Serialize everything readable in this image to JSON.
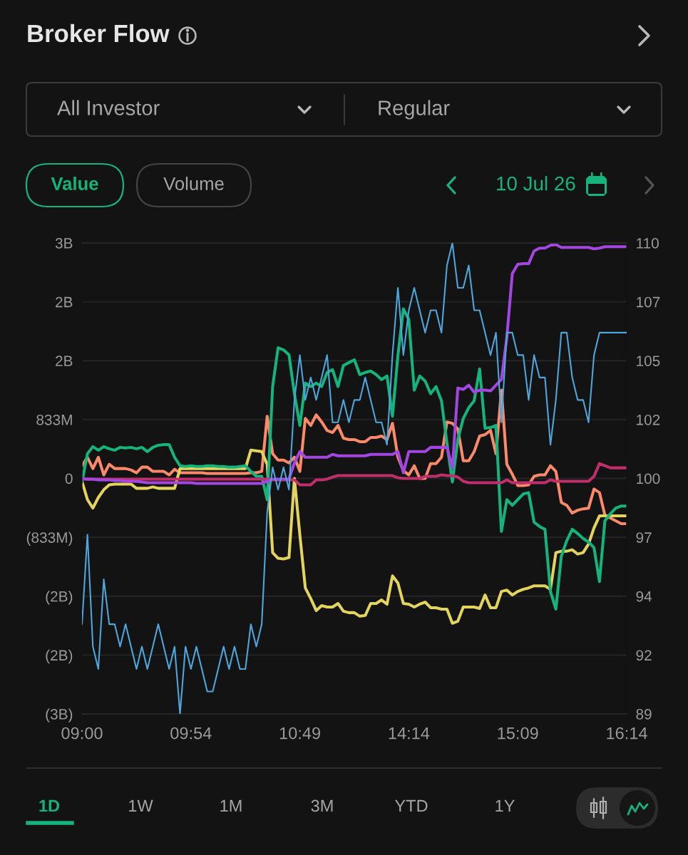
{
  "chart_data": {
    "type": "line",
    "title": "Broker Flow",
    "annotations": [
      "All Investor",
      "Regular",
      "Value",
      "Volume",
      "10 Jul 26",
      "1D",
      "1W",
      "1M",
      "3M",
      "YTD",
      "1Y"
    ],
    "categories": [
      "09:00",
      null,
      null,
      null,
      null,
      null,
      null,
      null,
      null,
      null,
      null,
      null,
      null,
      null,
      null,
      null,
      null,
      null,
      null,
      null,
      "09:54",
      null,
      null,
      null,
      null,
      null,
      null,
      null,
      null,
      null,
      null,
      null,
      null,
      null,
      null,
      null,
      null,
      null,
      null,
      null,
      "10:49",
      null,
      null,
      null,
      null,
      null,
      null,
      null,
      null,
      null,
      null,
      null,
      null,
      null,
      null,
      null,
      null,
      null,
      null,
      null,
      "14:14",
      null,
      null,
      null,
      null,
      null,
      null,
      null,
      null,
      null,
      null,
      null,
      null,
      null,
      null,
      null,
      null,
      null,
      null,
      null,
      "15:09",
      null,
      null,
      null,
      null,
      null,
      null,
      null,
      null,
      null,
      null,
      null,
      null,
      null,
      null,
      null,
      null,
      null,
      null,
      null,
      "16:14"
    ],
    "series": [
      {
        "color": "#fb8a6a",
        "values": [
          180000000.0,
          300000000.0,
          140000000.0,
          300000000.0,
          50000000.0,
          200000000.0,
          140000000.0,
          140000000.0,
          140000000.0,
          120000000.0,
          80000000.0,
          160000000.0,
          160000000.0,
          100000000.0,
          100000000.0,
          100000000.0,
          50000000.0,
          130000000.0,
          80000000.0,
          80000000.0,
          80000000.0,
          80000000.0,
          80000000.0,
          70000000.0,
          70000000.0,
          70000000.0,
          70000000.0,
          70000000.0,
          70000000.0,
          70000000.0,
          70000000.0,
          80000000.0,
          80000000.0,
          100000000.0,
          880000000.0,
          350000000.0,
          260000000.0,
          260000000.0,
          220000000.0,
          300000000.0,
          100000000.0,
          850000000.0,
          750000000.0,
          900000000.0,
          800000000.0,
          680000000.0,
          650000000.0,
          750000000.0,
          570000000.0,
          550000000.0,
          550000000.0,
          520000000.0,
          520000000.0,
          580000000.0,
          580000000.0,
          600000000.0,
          550000000.0,
          780000000.0,
          300000000.0,
          110000000.0,
          50000000.0,
          180000000.0,
          0,
          0,
          210000000.0,
          210000000.0,
          300000000.0,
          800000000.0,
          780000000.0,
          700000000.0,
          250000000.0,
          250000000.0,
          380000000.0,
          600000000.0,
          620000000.0,
          680000000.0,
          350000000.0,
          1250000000.0,
          200000000.0,
          60000000.0,
          -100000000.0,
          -100000000.0,
          -90000000.0,
          30000000.0,
          50000000.0,
          50000000.0,
          180000000.0,
          100000000.0,
          -340000000.0,
          -380000000.0,
          -490000000.0,
          -450000000.0,
          -430000000.0,
          -420000000.0,
          -150000000.0,
          -200000000.0,
          -520000000.0,
          -560000000.0,
          -600000000.0,
          -640000000.0,
          -640000000.0
        ]
      },
      {
        "color": "#e2d45c",
        "values": [
          -40000000.0,
          -300000000.0,
          -420000000.0,
          -270000000.0,
          -160000000.0,
          -90000000.0,
          -80000000.0,
          -80000000.0,
          -80000000.0,
          -80000000.0,
          -140000000.0,
          -140000000.0,
          -140000000.0,
          -120000000.0,
          -140000000.0,
          -140000000.0,
          -140000000.0,
          -140000000.0,
          140000000.0,
          140000000.0,
          140000000.0,
          140000000.0,
          140000000.0,
          140000000.0,
          140000000.0,
          140000000.0,
          140000000.0,
          140000000.0,
          140000000.0,
          140000000.0,
          140000000.0,
          400000000.0,
          390000000.0,
          380000000.0,
          200000000.0,
          -1050000000.0,
          -1130000000.0,
          -1140000000.0,
          -1120000000.0,
          0,
          -800000000.0,
          -1550000000.0,
          -1700000000.0,
          -1870000000.0,
          -1800000000.0,
          -1820000000.0,
          -1820000000.0,
          -1770000000.0,
          -1880000000.0,
          -1900000000.0,
          -1900000000.0,
          -1950000000.0,
          -1940000000.0,
          -1770000000.0,
          -1770000000.0,
          -1720000000.0,
          -1780000000.0,
          -1380000000.0,
          -1480000000.0,
          -1770000000.0,
          -1780000000.0,
          -1820000000.0,
          -1780000000.0,
          -1750000000.0,
          -1830000000.0,
          -1830000000.0,
          -1850000000.0,
          -1850000000.0,
          -2050000000.0,
          -2020000000.0,
          -1820000000.0,
          -1820000000.0,
          -1820000000.0,
          -1840000000.0,
          -1650000000.0,
          -1830000000.0,
          -1830000000.0,
          -1600000000.0,
          -1580000000.0,
          -1650000000.0,
          -1600000000.0,
          -1570000000.0,
          -1550000000.0,
          -1520000000.0,
          -1520000000.0,
          -1520000000.0,
          -1570000000.0,
          -1050000000.0,
          -1030000000.0,
          -1030000000.0,
          -1010000000.0,
          -1070000000.0,
          -1050000000.0,
          -930000000.0,
          -700000000.0,
          -530000000.0,
          -530000000.0,
          -530000000.0,
          -530000000.0,
          -530000000.0,
          -530000000.0
        ]
      },
      {
        "color": "#14b47c",
        "values": [
          -50000000.0,
          350000000.0,
          450000000.0,
          400000000.0,
          450000000.0,
          420000000.0,
          400000000.0,
          440000000.0,
          430000000.0,
          440000000.0,
          420000000.0,
          440000000.0,
          380000000.0,
          440000000.0,
          470000000.0,
          480000000.0,
          480000000.0,
          300000000.0,
          180000000.0,
          170000000.0,
          180000000.0,
          170000000.0,
          170000000.0,
          180000000.0,
          180000000.0,
          170000000.0,
          170000000.0,
          160000000.0,
          160000000.0,
          170000000.0,
          180000000.0,
          100000000.0,
          30000000.0,
          30000000.0,
          -300000000.0,
          1300000000.0,
          1850000000.0,
          1820000000.0,
          1750000000.0,
          1200000000.0,
          750000000.0,
          1350000000.0,
          1300000000.0,
          1350000000.0,
          1300000000.0,
          1500000000.0,
          1540000000.0,
          1300000000.0,
          1600000000.0,
          1640000000.0,
          1680000000.0,
          1470000000.0,
          1500000000.0,
          1520000000.0,
          1470000000.0,
          1400000000.0,
          1450000000.0,
          880000000.0,
          1740000000.0,
          2400000000.0,
          2250000000.0,
          1250000000.0,
          1450000000.0,
          1380000000.0,
          1200000000.0,
          1300000000.0,
          1100000000.0,
          500000000.0,
          -50000000.0,
          550000000.0,
          850000000.0,
          1000000000.0,
          1100000000.0,
          1550000000.0,
          710000000.0,
          720000000.0,
          750000000.0,
          -750000000.0,
          -300000000.0,
          -380000000.0,
          -300000000.0,
          -220000000.0,
          -200000000.0,
          -620000000.0,
          -680000000.0,
          -720000000.0,
          -1600000000.0,
          -1850000000.0,
          -1100000000.0,
          -880000000.0,
          -720000000.0,
          -780000000.0,
          -850000000.0,
          -900000000.0,
          -980000000.0,
          -1460000000.0,
          -600000000.0,
          -500000000.0,
          -420000000.0,
          -390000000.0,
          -390000000.0
        ]
      },
      {
        "color": "#c02e6c",
        "values": [
          -10000000.0,
          -10000000.0,
          -10000000.0,
          -10000000.0,
          -10000000.0,
          -10000000.0,
          -10000000.0,
          -10000000.0,
          -10000000.0,
          -10000000.0,
          -10000000.0,
          -10000000.0,
          -10000000.0,
          -10000000.0,
          -10000000.0,
          -10000000.0,
          -10000000.0,
          -10000000.0,
          -10000000.0,
          -10000000.0,
          -10000000.0,
          -10000000.0,
          -10000000.0,
          -10000000.0,
          -10000000.0,
          -10000000.0,
          -10000000.0,
          -10000000.0,
          -10000000.0,
          -10000000.0,
          -10000000.0,
          -10000000.0,
          -10000000.0,
          -10000000.0,
          -10000000.0,
          -20000000.0,
          -20000000.0,
          -20000000.0,
          -20000000.0,
          -20000000.0,
          -90000000.0,
          -90000000.0,
          -90000000.0,
          -20000000.0,
          -20000000.0,
          -10000000.0,
          20000000.0,
          40000000.0,
          40000000.0,
          40000000.0,
          40000000.0,
          40000000.0,
          40000000.0,
          40000000.0,
          40000000.0,
          40000000.0,
          40000000.0,
          40000000.0,
          10000000.0,
          0,
          0,
          0,
          0,
          30000000.0,
          30000000.0,
          30000000.0,
          50000000.0,
          40000000.0,
          40000000.0,
          20000000.0,
          -40000000.0,
          -60000000.0,
          -60000000.0,
          -60000000.0,
          -60000000.0,
          -60000000.0,
          -60000000.0,
          -60000000.0,
          -20000000.0,
          -60000000.0,
          -60000000.0,
          -60000000.0,
          -60000000.0,
          -60000000.0,
          -60000000.0,
          -60000000.0,
          -20000000.0,
          -40000000.0,
          -40000000.0,
          -40000000.0,
          -40000000.0,
          -40000000.0,
          -40000000.0,
          -40000000.0,
          30000000.0,
          210000000.0,
          180000000.0,
          150000000.0,
          150000000.0,
          150000000.0,
          150000000.0
        ]
      },
      {
        "color": "#a347e0",
        "values": [
          0,
          -10000000.0,
          -10000000.0,
          -20000000.0,
          -20000000.0,
          -20000000.0,
          -30000000.0,
          -30000000.0,
          -40000000.0,
          -40000000.0,
          -40000000.0,
          -50000000.0,
          -60000000.0,
          -60000000.0,
          -60000000.0,
          -60000000.0,
          -60000000.0,
          -60000000.0,
          -60000000.0,
          -60000000.0,
          -60000000.0,
          -70000000.0,
          -70000000.0,
          -70000000.0,
          -70000000.0,
          -70000000.0,
          -70000000.0,
          -70000000.0,
          -70000000.0,
          -70000000.0,
          -70000000.0,
          -70000000.0,
          -70000000.0,
          -70000000.0,
          -40000000.0,
          -10000000.0,
          -10000000.0,
          -10000000.0,
          -10000000.0,
          220000000.0,
          380000000.0,
          300000000.0,
          300000000.0,
          300000000.0,
          300000000.0,
          300000000.0,
          340000000.0,
          320000000.0,
          320000000.0,
          320000000.0,
          320000000.0,
          320000000.0,
          320000000.0,
          340000000.0,
          340000000.0,
          340000000.0,
          340000000.0,
          340000000.0,
          380000000.0,
          80000000.0,
          380000000.0,
          380000000.0,
          380000000.0,
          380000000.0,
          440000000.0,
          440000000.0,
          440000000.0,
          440000000.0,
          150000000.0,
          1280000000.0,
          1260000000.0,
          1320000000.0,
          1220000000.0,
          1250000000.0,
          1250000000.0,
          1240000000.0,
          1320000000.0,
          1400000000.0,
          2000000000.0,
          2900000000.0,
          3030000000.0,
          3040000000.0,
          3040000000.0,
          3220000000.0,
          3260000000.0,
          3260000000.0,
          3300000000.0,
          3310000000.0,
          3270000000.0,
          3270000000.0,
          3270000000.0,
          3270000000.0,
          3270000000.0,
          3270000000.0,
          3250000000.0,
          3260000000.0,
          3280000000.0,
          3280000000.0,
          3280000000.0,
          3280000000.0,
          3280000000.0
        ]
      },
      {
        "color": "#4ea6dc",
        "axis": "y2",
        "values": [
          93,
          97,
          92,
          91,
          95,
          93,
          93,
          92,
          93,
          92,
          91,
          92,
          91,
          92,
          93,
          92,
          91,
          92,
          89,
          92,
          91,
          92,
          91,
          90,
          90,
          91,
          92,
          91,
          92,
          91,
          91,
          93,
          92,
          93,
          98,
          100,
          99,
          100,
          99,
          103,
          105,
          103,
          104,
          103,
          104,
          105,
          102,
          102,
          103,
          102,
          103,
          103,
          104,
          103,
          102,
          102,
          101,
          105,
          108,
          105,
          107,
          108,
          107,
          106,
          107,
          107,
          106,
          109,
          110,
          108,
          108,
          109,
          107,
          107,
          106,
          105,
          106,
          102,
          106,
          106,
          105,
          105,
          103,
          105,
          104,
          104,
          101,
          103,
          106,
          106,
          104,
          103,
          103,
          102,
          105,
          106,
          106,
          106,
          106,
          106,
          106
        ]
      }
    ],
    "ylim": [
      -3333333333,
      3333333333
    ],
    "yticks": [
      {
        "value": -3333333333,
        "label": "(3B)"
      },
      {
        "value": -2500000000,
        "label": "(2B)"
      },
      {
        "value": -1666666667,
        "label": "(2B)"
      },
      {
        "value": -833333333,
        "label": "(833M)"
      },
      0,
      {
        "value": 833333333,
        "label": "833M"
      },
      {
        "value": 1666666667,
        "label": "2B"
      },
      {
        "value": 2500000000,
        "label": "2B"
      },
      {
        "value": 3333333333,
        "label": "3B"
      }
    ],
    "y2lim": [
      89,
      110
    ],
    "y2ticks": [
      89,
      {
        "value": 91.625,
        "label": "92"
      },
      {
        "value": 94.25,
        "label": "94"
      },
      {
        "value": 96.875,
        "label": "97"
      },
      {
        "value": 99.5,
        "label": "100"
      },
      {
        "value": 102.125,
        "label": "102"
      },
      {
        "value": 104.75,
        "label": "105"
      },
      {
        "value": 107.375,
        "label": "107"
      },
      110
    ],
    "grid": "y"
  }
}
